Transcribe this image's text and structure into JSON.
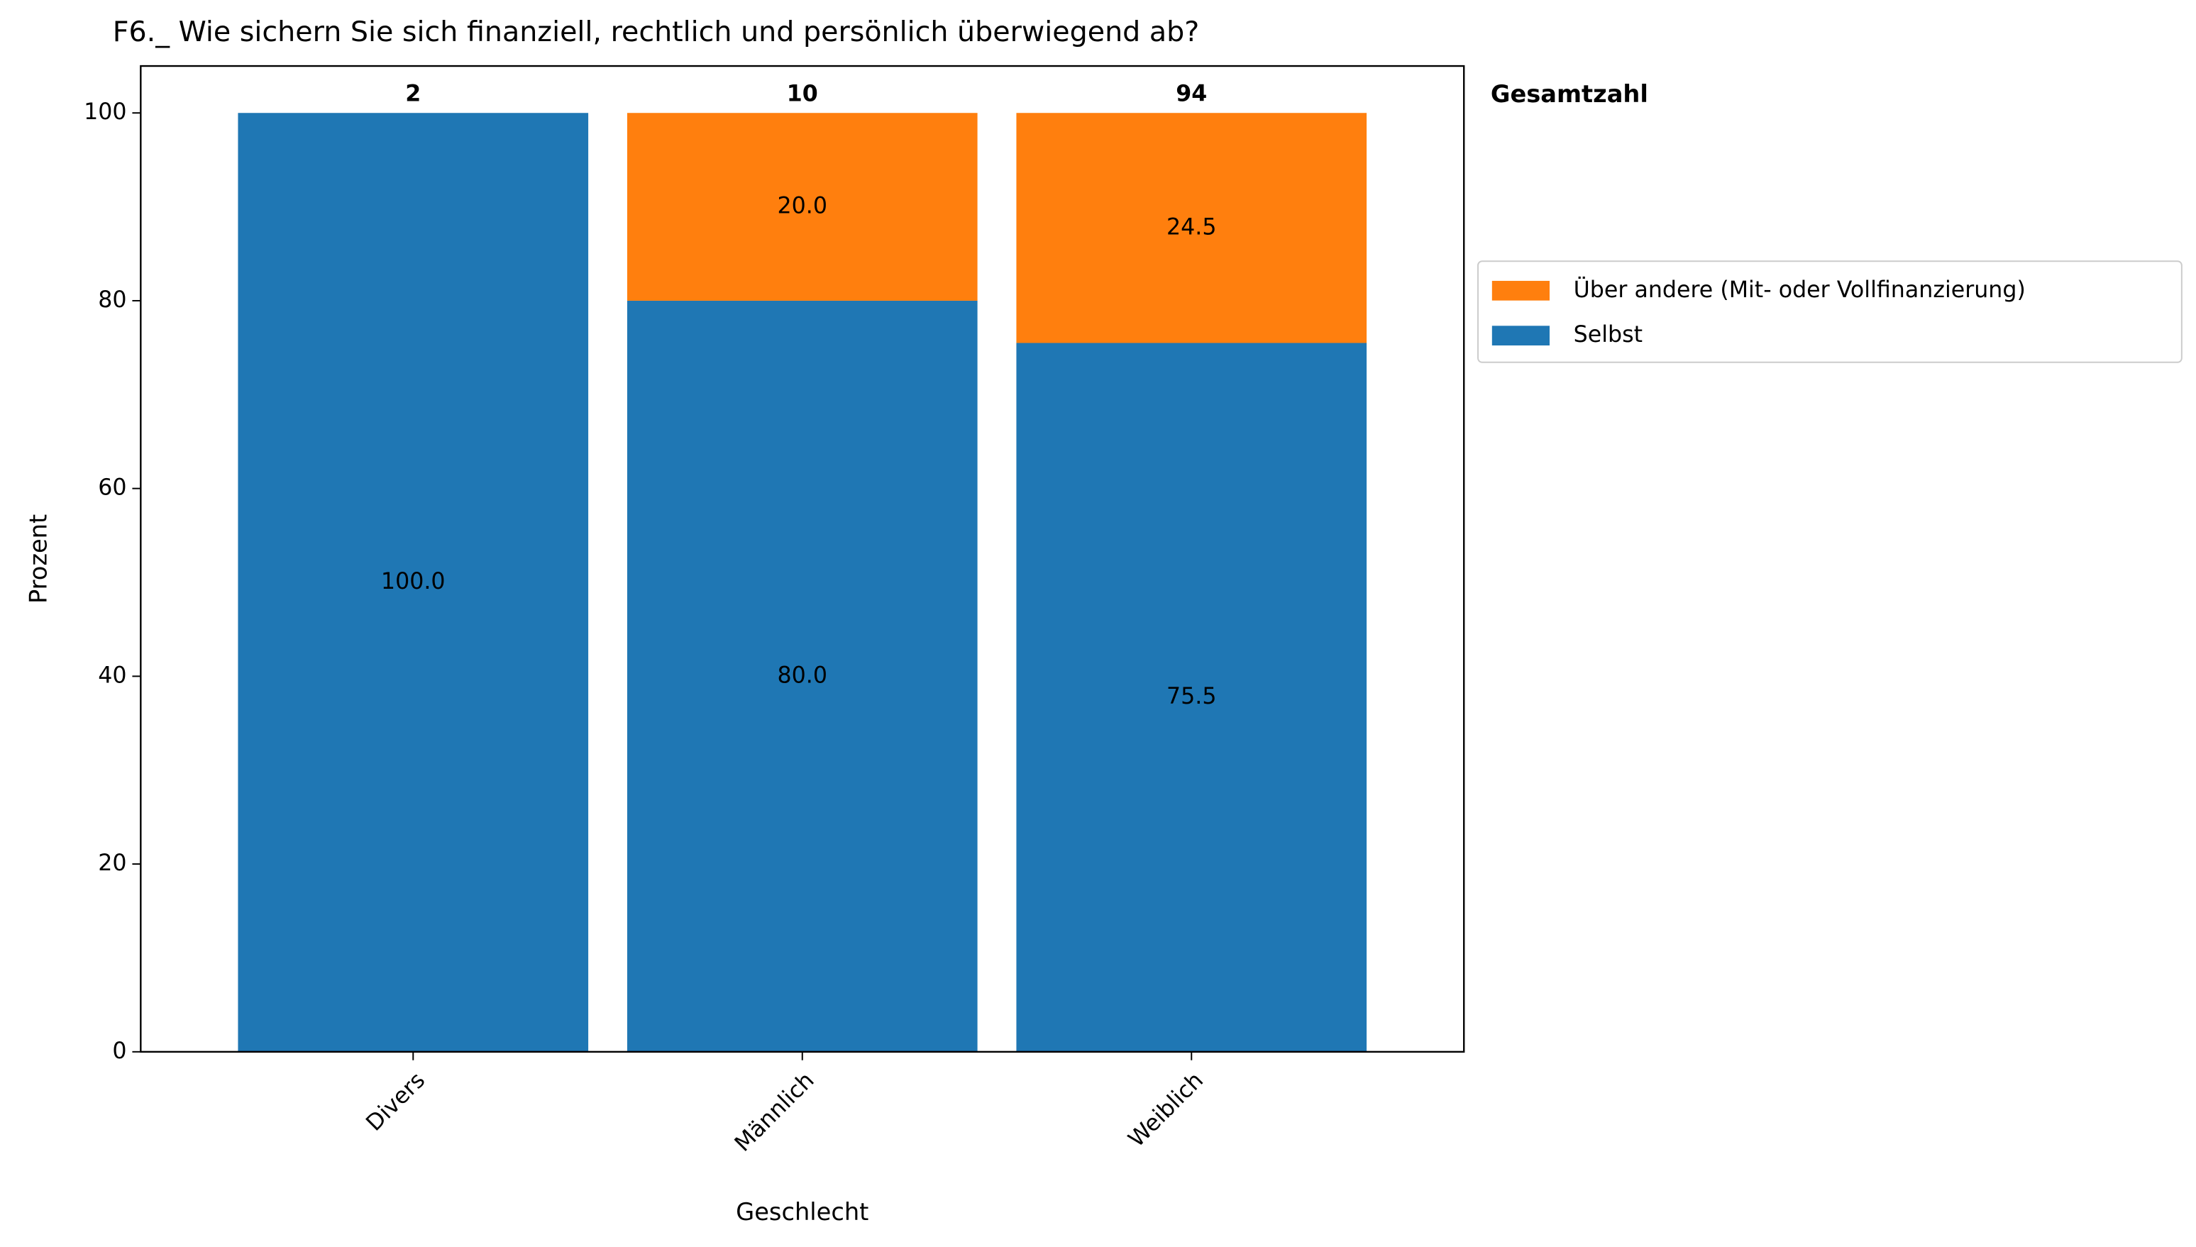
{
  "chart_data": {
    "type": "stacked_bar",
    "title": "F6._ Wie sichern Sie sich finanziell, rechtlich und persönlich überwiegend ab?",
    "x_label": "Geschlecht",
    "y_label": "Prozent",
    "categories": [
      "Divers",
      "Männlich",
      "Weiblich"
    ],
    "series": [
      {
        "name": "Selbst",
        "color": "#1f77b4",
        "values": [
          100,
          80,
          75.5
        ],
        "value_labels": [
          "100.0",
          "80.0",
          "75.5"
        ]
      },
      {
        "name": "Über andere (Mit- oder Vollfinanzierung)",
        "color": "#ff7f0e",
        "values": [
          null,
          20,
          24.5
        ],
        "value_labels": [
          null,
          "20.0",
          "24.5"
        ]
      }
    ],
    "totals": {
      "title": "Gesamtzahl",
      "values": [
        2,
        10,
        94
      ]
    },
    "ylim": [
      0,
      105
    ],
    "yticks": [
      0,
      20,
      40,
      60,
      80,
      100
    ],
    "legend": "right"
  }
}
